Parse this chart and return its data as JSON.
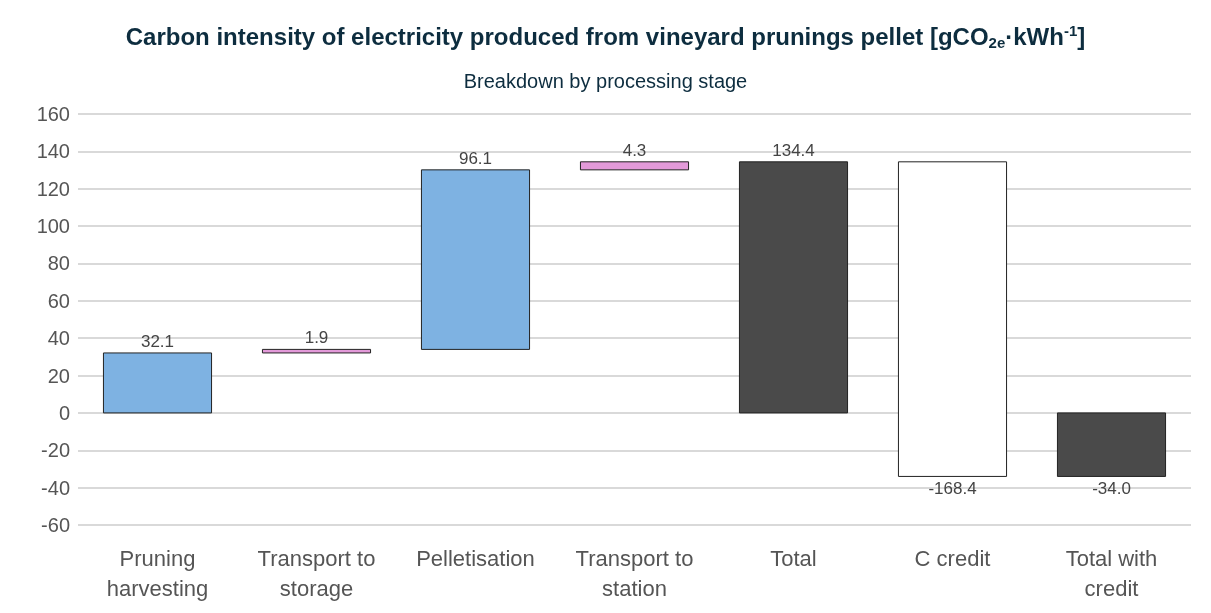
{
  "chart_data": {
    "type": "bar",
    "title": "Carbon intensity of electricity produced from vineyard prunings pellet [gCO$_{2e}$·kWh$^{-1}$]",
    "subtitle": "Breakdown by processing stage",
    "categories": [
      "Pruning\nharvesting",
      "Transport to\nstorage",
      "Pelletisation",
      "Transport to\nstation",
      "Total",
      "C credit",
      "Total with\ncredit"
    ],
    "values": [
      32.1,
      1.9,
      96.1,
      4.3,
      134.4,
      -168.4,
      -34.0
    ],
    "base": [
      0,
      32.1,
      34.0,
      130.1,
      0,
      134.4,
      0
    ],
    "colors": [
      "#7eb2e2",
      "#e39ad9",
      "#7eb2e2",
      "#e39ad9",
      "#4a4a4a",
      "#ffffff",
      "#4a4a4a"
    ],
    "value_labels": [
      "32.1",
      "1.9",
      "96.1",
      "4.3",
      "134.4",
      "-168.4",
      "-34.0"
    ],
    "ylim": [
      -60,
      160
    ],
    "yticks": [
      -60,
      -40,
      -20,
      0,
      20,
      40,
      60,
      80,
      100,
      120,
      140,
      160
    ],
    "grid": "y"
  }
}
